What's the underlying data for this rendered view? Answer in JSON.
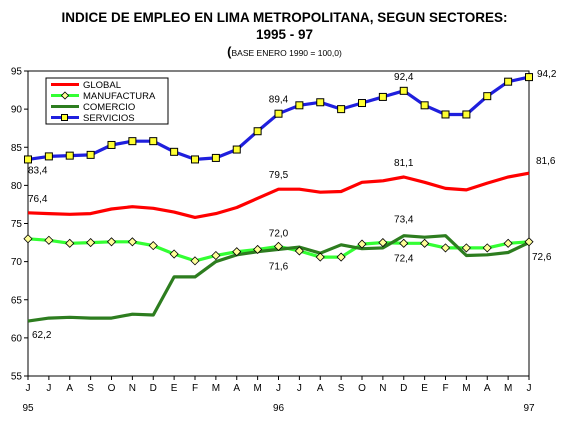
{
  "chart_data": {
    "type": "line",
    "title_lines": [
      "INDICE DE EMPLEO EN LIMA METROPOLITANA, SEGUN SECTORES:",
      "1995 - 97"
    ],
    "subtitle_paren": "(",
    "subtitle": "BASE ENERO 1990 = 100,0)",
    "xlabel": "",
    "ylabel": "",
    "ylim": [
      55,
      95
    ],
    "yticks": [
      55,
      60,
      65,
      70,
      75,
      80,
      85,
      90,
      95
    ],
    "grid": false,
    "legend_position": "top-left",
    "x_month_labels": [
      "J",
      "J",
      "A",
      "S",
      "O",
      "N",
      "D",
      "E",
      "F",
      "M",
      "A",
      "M",
      "J",
      "J",
      "A",
      "S",
      "O",
      "N",
      "D",
      "E",
      "F",
      "M",
      "A",
      "M",
      "J"
    ],
    "x_year_labels": [
      {
        "index": 0,
        "label": "95"
      },
      {
        "index": 12,
        "label": "96"
      },
      {
        "index": 24,
        "label": "97"
      }
    ],
    "series": [
      {
        "name": "GLOBAL",
        "color": "#ff0000",
        "marker": "none",
        "values": [
          76.4,
          76.3,
          76.2,
          76.3,
          76.9,
          77.2,
          77.0,
          76.5,
          75.8,
          76.3,
          77.1,
          78.3,
          79.5,
          79.5,
          79.1,
          79.2,
          80.4,
          80.6,
          81.1,
          80.4,
          79.6,
          79.4,
          80.3,
          81.1,
          81.6
        ]
      },
      {
        "name": "MANUFACTURA",
        "color": "#33ff33",
        "marker": "diamond",
        "values": [
          73.0,
          72.8,
          72.4,
          72.5,
          72.6,
          72.6,
          72.1,
          71.0,
          70.1,
          70.8,
          71.3,
          71.6,
          72.0,
          71.4,
          70.6,
          70.6,
          72.3,
          72.5,
          72.4,
          72.4,
          71.8,
          71.8,
          71.8,
          72.4,
          72.6
        ]
      },
      {
        "name": "COMERCIO",
        "color": "#2d7d1f",
        "marker": "none",
        "values": [
          62.2,
          62.6,
          62.7,
          62.6,
          62.6,
          63.1,
          63.0,
          68.0,
          68.0,
          70.0,
          70.9,
          71.3,
          71.6,
          71.9,
          71.1,
          72.2,
          71.7,
          71.8,
          73.4,
          73.2,
          73.4,
          70.8,
          70.9,
          71.2,
          72.5
        ]
      },
      {
        "name": "SERVICIOS",
        "color": "#1f1fdd",
        "marker": "square",
        "values": [
          83.4,
          83.8,
          83.9,
          84.0,
          85.3,
          85.8,
          85.8,
          84.4,
          83.4,
          83.6,
          84.7,
          87.1,
          89.4,
          90.5,
          90.9,
          90.0,
          90.8,
          91.6,
          92.4,
          90.5,
          89.3,
          89.3,
          91.7,
          93.6,
          94.2
        ]
      }
    ],
    "annotations": [
      {
        "text": "94,2",
        "series": "SERVICIOS",
        "index": 24
      },
      {
        "text": "92,4",
        "series": "SERVICIOS",
        "index": 18
      },
      {
        "text": "89,4",
        "series": "SERVICIOS",
        "index": 12
      },
      {
        "text": "83,4",
        "series": "SERVICIOS",
        "index": 0
      },
      {
        "text": "81,6",
        "series": "GLOBAL",
        "index": 24
      },
      {
        "text": "81,1",
        "series": "GLOBAL",
        "index": 18
      },
      {
        "text": "79,5",
        "series": "GLOBAL",
        "index": 12
      },
      {
        "text": "76,4",
        "series": "GLOBAL",
        "index": 0
      },
      {
        "text": "73,4",
        "series": "COMERCIO",
        "index": 18
      },
      {
        "text": "72,4",
        "series": "MANUFACTURA",
        "index": 18
      },
      {
        "text": "72,0",
        "series": "MANUFACTURA",
        "index": 12
      },
      {
        "text": "71,6",
        "series": "COMERCIO",
        "index": 12
      },
      {
        "text": "72,6",
        "series": "MANUFACTURA",
        "index": 24
      },
      {
        "text": "62,2",
        "series": "COMERCIO",
        "index": 0
      }
    ]
  }
}
